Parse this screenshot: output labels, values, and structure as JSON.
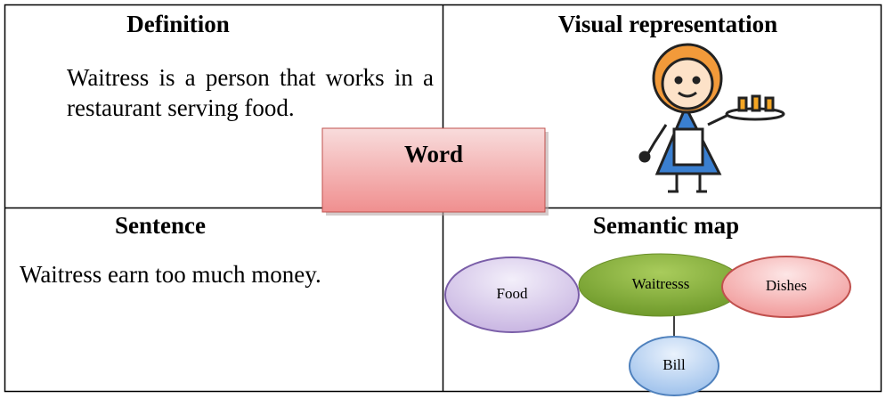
{
  "definition": {
    "title": "Definition",
    "text": "Waitress is a person that works in a restaurant serving food."
  },
  "visual": {
    "title": "Visual representation"
  },
  "word": {
    "label": "Word"
  },
  "sentence": {
    "title": "Sentence",
    "text": "Waitress earn too much money."
  },
  "semantic_map": {
    "title": "Semantic map",
    "nodes": [
      {
        "label": "Food"
      },
      {
        "label": "Waitresss"
      },
      {
        "label": "Dishes"
      },
      {
        "label": "Bill"
      }
    ]
  }
}
